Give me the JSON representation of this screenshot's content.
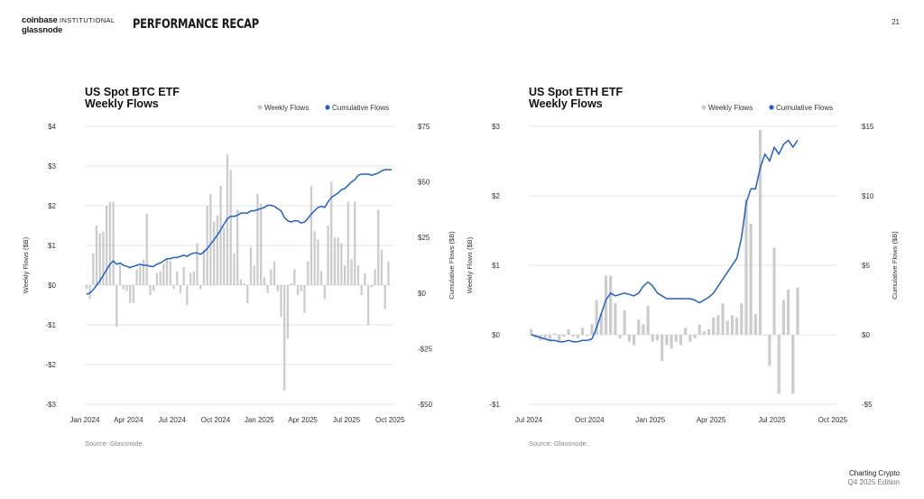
{
  "header": {
    "brand_line1": "coinbase",
    "brand_line1_suffix": "INSTITUTIONAL",
    "brand_line2": "glassnode",
    "title": "PERFORMANCE RECAP",
    "page_number": "21"
  },
  "footer": {
    "line1": "Charting Crypto",
    "line2": "Q4 2025 Edition"
  },
  "colors": {
    "bars": "#cccccc",
    "line": "#1f5fd6",
    "grid": "#e4e4e4"
  },
  "chart_data": [
    {
      "type": "bar",
      "title_line1": "US Spot BTC ETF",
      "title_line2": "Weekly Flows",
      "legend": [
        "Weekly Flows",
        "Cumulative Flows"
      ],
      "ylabel": "Weekly Flows ($B)",
      "y2label": "Cumulative Flows ($B)",
      "ylim": [
        -3,
        4
      ],
      "y2lim": [
        -50,
        75
      ],
      "yticks": [
        -3,
        -2,
        -1,
        0,
        1,
        2,
        3,
        4
      ],
      "ytick_labels": [
        "-$3",
        "-$2",
        "-$1",
        "$0",
        "$1",
        "$2",
        "$3",
        "$4"
      ],
      "y2ticks": [
        -50,
        -25,
        0,
        25,
        50,
        75
      ],
      "y2tick_labels": [
        "-$50",
        "-$25",
        "$0",
        "$25",
        "$50",
        "$75"
      ],
      "xlim": [
        0,
        92
      ],
      "xticks": [
        0,
        13,
        26,
        39,
        52,
        65,
        78,
        91
      ],
      "xtick_labels": [
        "Jan 2024",
        "Apr 2024",
        "Jul 2024",
        "Oct 2024",
        "Jan 2025",
        "Apr 2025",
        "Jul 2025",
        "Oct 2025"
      ],
      "source": "Source: Glassnode.",
      "weekly_flows": [
        -0.1,
        -0.35,
        0.8,
        1.5,
        1.3,
        1.35,
        2,
        2.1,
        2.1,
        -1.05,
        0.5,
        -0.1,
        -0.15,
        -0.45,
        -0.45,
        0.4,
        0.5,
        0.65,
        1.8,
        -0.25,
        -0.15,
        0.3,
        0.35,
        0.55,
        0.65,
        0.6,
        -0.1,
        0.35,
        -0.2,
        0.45,
        -0.5,
        0.3,
        0.35,
        1.05,
        -0.1,
        0.9,
        2,
        2.3,
        1.6,
        1.75,
        2.5,
        1.45,
        3.3,
        2.9,
        0.8,
        1.9,
        0.15,
        0.05,
        -0.45,
        0.95,
        0.5,
        2.3,
        2.05,
        0.2,
        -0.2,
        0.4,
        0.6,
        -0.15,
        -0.8,
        -2.65,
        -1.35,
        0.05,
        0.4,
        -0.25,
        -0.15,
        -0.7,
        0.6,
        2.5,
        1.35,
        1.15,
        0.35,
        -0.35,
        1.5,
        2.6,
        1.2,
        1.2,
        1.05,
        0.5,
        2.1,
        0.65,
        2.1,
        0.5,
        -0.25,
        0.3,
        -1,
        -0.05,
        0.4,
        1.9,
        0.9,
        -0.6,
        0.6
      ],
      "cumulative_flows": [
        -0.5,
        0,
        1.5,
        3.5,
        5.5,
        8,
        10.5,
        13,
        14.5,
        13,
        13.5,
        12.5,
        12,
        11.5,
        12,
        12.5,
        13,
        12.5,
        12.5,
        12,
        12,
        13,
        13.5,
        14.5,
        15.5,
        15.5,
        16,
        16,
        16.5,
        17,
        16.5,
        17.5,
        18,
        18,
        17.5,
        18.5,
        20,
        22,
        24,
        26,
        28.5,
        31,
        33.5,
        34.5,
        34.5,
        35,
        36,
        36,
        36,
        37,
        37,
        37.5,
        38,
        38.5,
        39.5,
        39.5,
        39,
        38,
        37,
        34,
        32.5,
        32,
        32.5,
        32.5,
        31.5,
        32,
        33.5,
        35.5,
        37,
        38.5,
        39,
        38.5,
        41,
        43,
        44,
        45,
        46.5,
        47,
        48.5,
        50,
        51,
        53,
        53.5,
        53.5,
        53.5,
        53,
        53.5,
        54,
        55,
        55.5,
        55.5,
        55.5
      ]
    },
    {
      "type": "bar",
      "title_line1": "US Spot ETH ETF",
      "title_line2": "Weekly Flows",
      "legend": [
        "Weekly Flows",
        "Cumulative Flows"
      ],
      "ylabel": "Weekly Flows ($B)",
      "y2label": "Cumulative Flows ($B)",
      "ylim": [
        -1,
        3
      ],
      "y2lim": [
        -5,
        15
      ],
      "yticks": [
        -1,
        0,
        1,
        2,
        3
      ],
      "ytick_labels": [
        "-$1",
        "$0",
        "$1",
        "$2",
        "$3"
      ],
      "y2ticks": [
        -5,
        0,
        5,
        10,
        15
      ],
      "y2tick_labels": [
        "-$5",
        "$0",
        "$5",
        "$10",
        "$15"
      ],
      "xlim": [
        0,
        66
      ],
      "xticks": [
        0,
        13,
        26,
        39,
        52,
        65
      ],
      "xtick_labels": [
        "Jul 2024",
        "Oct 2024",
        "Jan 2025",
        "Apr 2025",
        "Jul 2025",
        "Oct 2025"
      ],
      "source": "Source: Glassnode.",
      "weekly_flows": [
        0.08,
        -0.04,
        -0.08,
        -0.05,
        -0.1,
        0.02,
        -0.1,
        -0.03,
        0.08,
        -0.03,
        -0.05,
        0.1,
        -0.02,
        0.15,
        0.5,
        0.3,
        0.85,
        0.85,
        0.45,
        -0.05,
        0.35,
        -0.1,
        -0.15,
        0.22,
        0.15,
        0.42,
        -0.1,
        -0.08,
        -0.38,
        -0.15,
        -0.2,
        -0.1,
        -0.15,
        0.1,
        -0.1,
        -0.05,
        0.15,
        0.05,
        0.08,
        0.25,
        0.28,
        0.45,
        0.2,
        0.28,
        0.25,
        0.45,
        1.95,
        1.6,
        0.3,
        2.95,
        0,
        -0.45,
        1.25,
        -0.85,
        0.5,
        0.65,
        -0.85,
        0.68
      ],
      "cumulative_flows": [
        0,
        -0.1,
        -0.2,
        -0.3,
        -0.4,
        -0.4,
        -0.5,
        -0.5,
        -0.4,
        -0.5,
        -0.5,
        -0.4,
        -0.4,
        -0.3,
        0.5,
        1.5,
        2.5,
        3,
        2.8,
        2.9,
        3,
        2.9,
        2.8,
        3,
        3.5,
        3.8,
        3.5,
        3,
        2.8,
        2.6,
        2.6,
        2.6,
        2.6,
        2.6,
        2.6,
        2.5,
        2.3,
        2.5,
        2.7,
        3,
        3.5,
        4,
        4.5,
        5,
        5.5,
        7,
        9.5,
        10.5,
        10.5,
        12,
        13,
        12.5,
        13.5,
        13,
        13.7,
        14,
        13.5,
        14
      ]
    }
  ]
}
